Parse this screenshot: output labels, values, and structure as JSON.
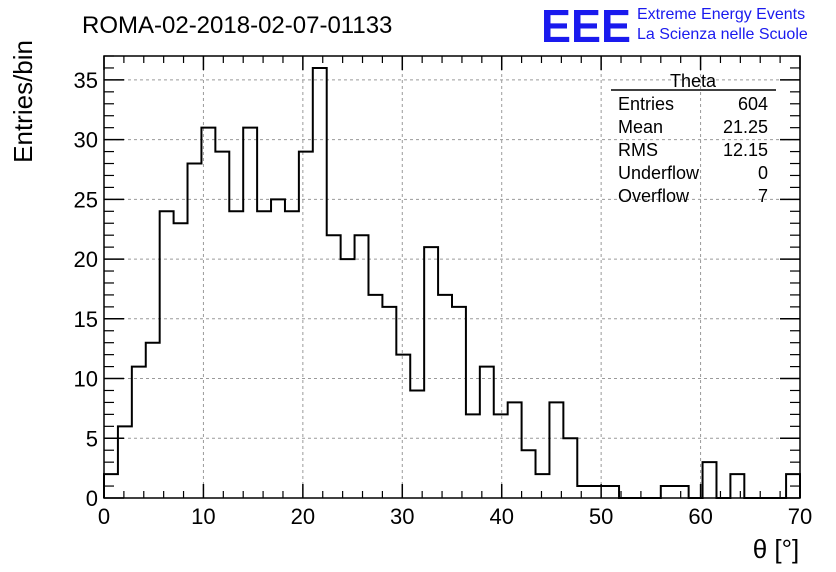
{
  "chart_data": {
    "type": "bar",
    "title": "ROMA-02-2018-02-07-01133",
    "xlabel": "θ [°]",
    "ylabel": "Entries/bin",
    "xlim": [
      0,
      70
    ],
    "ylim": [
      0,
      37
    ],
    "grid": true,
    "bin_width": 1.4,
    "x_ticks": [
      "0",
      "10",
      "20",
      "30",
      "40",
      "50",
      "60",
      "70"
    ],
    "y_ticks": [
      "0",
      "5",
      "10",
      "15",
      "20",
      "25",
      "30",
      "35"
    ],
    "values": [
      2,
      6,
      11,
      13,
      24,
      23,
      28,
      31,
      29,
      24,
      31,
      24,
      25,
      24,
      29,
      36,
      22,
      20,
      22,
      17,
      16,
      12,
      9,
      21,
      17,
      16,
      7,
      11,
      7,
      8,
      4,
      2,
      8,
      5,
      1,
      1,
      1,
      0,
      0,
      0,
      1,
      1,
      0,
      3,
      0,
      2,
      0,
      0,
      0,
      2
    ],
    "stats": {
      "name": "Theta",
      "rows": [
        {
          "label": "Entries",
          "value": "604"
        },
        {
          "label": "Mean",
          "value": "21.25"
        },
        {
          "label": "RMS",
          "value": "12.15"
        },
        {
          "label": "Underflow",
          "value": "0"
        },
        {
          "label": "Overflow",
          "value": "7"
        }
      ]
    },
    "logo": {
      "mark": "EEE",
      "line1": "Extreme Energy Events",
      "line2": "La Scienza nelle Scuole",
      "color": "#1a1aee"
    }
  }
}
